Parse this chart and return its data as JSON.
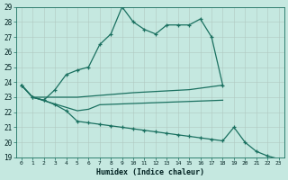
{
  "xlabel": "Humidex (Indice chaleur)",
  "xlim": [
    -0.5,
    23.5
  ],
  "ylim": [
    19,
    29
  ],
  "yticks": [
    19,
    20,
    21,
    22,
    23,
    24,
    25,
    26,
    27,
    28,
    29
  ],
  "xticks": [
    0,
    1,
    2,
    3,
    4,
    5,
    6,
    7,
    8,
    9,
    10,
    11,
    12,
    13,
    14,
    15,
    16,
    17,
    18,
    19,
    20,
    21,
    22,
    23
  ],
  "background_color": "#c5e8e0",
  "line_color": "#1a7060",
  "lines": [
    {
      "x": [
        0,
        1,
        2,
        3,
        4,
        5,
        6,
        7,
        8,
        9,
        10,
        11,
        12,
        13,
        14,
        15,
        16,
        17,
        18
      ],
      "y": [
        23.8,
        23.0,
        22.8,
        23.5,
        24.5,
        24.8,
        25.0,
        26.5,
        27.2,
        29.0,
        28.0,
        27.5,
        27.2,
        27.8,
        27.8,
        27.8,
        28.2,
        27.0,
        23.8
      ],
      "marker": true
    },
    {
      "x": [
        0,
        1,
        5,
        10,
        15,
        18
      ],
      "y": [
        23.8,
        23.0,
        23.0,
        23.3,
        23.5,
        23.8
      ],
      "marker": false
    },
    {
      "x": [
        0,
        1,
        5,
        6,
        7,
        18
      ],
      "y": [
        23.8,
        23.0,
        22.1,
        22.2,
        22.5,
        22.8
      ],
      "marker": false
    },
    {
      "x": [
        0,
        1,
        2,
        3,
        4,
        5,
        6,
        7,
        8,
        9,
        10,
        11,
        12,
        13,
        14,
        15,
        16,
        17,
        18,
        19,
        20,
        21,
        22,
        23
      ],
      "y": [
        23.8,
        23.0,
        22.8,
        22.5,
        22.1,
        21.4,
        21.3,
        21.2,
        21.1,
        21.0,
        20.9,
        20.8,
        20.7,
        20.6,
        20.5,
        20.4,
        20.3,
        20.2,
        20.1,
        21.0,
        20.0,
        19.4,
        19.1,
        18.9
      ],
      "marker": true
    }
  ]
}
